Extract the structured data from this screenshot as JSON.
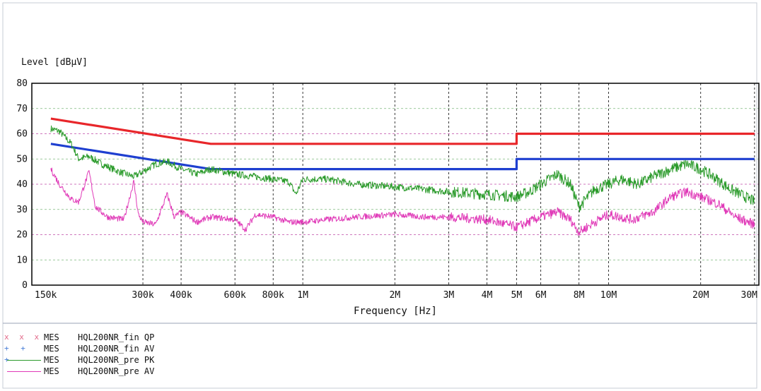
{
  "chart_data": {
    "type": "line",
    "ylabel": "Level [dBµV]",
    "xlabel": "Frequency [Hz]",
    "x_scale": "log",
    "xlim": [
      130000,
      31000000
    ],
    "ylim": [
      0,
      80
    ],
    "yticks": [
      0,
      10,
      20,
      30,
      40,
      50,
      60,
      70,
      80
    ],
    "xticks": [
      {
        "v": 150000,
        "label": "150k"
      },
      {
        "v": 300000,
        "label": "300k"
      },
      {
        "v": 400000,
        "label": "400k"
      },
      {
        "v": 600000,
        "label": "600k"
      },
      {
        "v": 800000,
        "label": "800k"
      },
      {
        "v": 1000000,
        "label": "1M"
      },
      {
        "v": 2000000,
        "label": "2M"
      },
      {
        "v": 3000000,
        "label": "3M"
      },
      {
        "v": 4000000,
        "label": "4M"
      },
      {
        "v": 5000000,
        "label": "5M"
      },
      {
        "v": 6000000,
        "label": "6M"
      },
      {
        "v": 8000000,
        "label": "8M"
      },
      {
        "v": 10000000,
        "label": "10M"
      },
      {
        "v": 20000000,
        "label": "20M"
      },
      {
        "v": 30000000,
        "label": "30M"
      }
    ],
    "grid": true,
    "limits": [
      {
        "color": "#e8262a",
        "points": [
          [
            150000,
            66
          ],
          [
            500000,
            56
          ],
          [
            5000000,
            56
          ],
          [
            5000000,
            60
          ],
          [
            30000000,
            60
          ]
        ]
      },
      {
        "color": "#1e3fd0",
        "points": [
          [
            150000,
            56
          ],
          [
            500000,
            46
          ],
          [
            5000000,
            46
          ],
          [
            5000000,
            50
          ],
          [
            30000000,
            50
          ]
        ]
      }
    ],
    "series": [
      {
        "color": "#2a9a2a",
        "noise": 1.4,
        "points": [
          [
            150000,
            62
          ],
          [
            160000,
            61
          ],
          [
            175000,
            56
          ],
          [
            185000,
            50
          ],
          [
            200000,
            51
          ],
          [
            220000,
            48
          ],
          [
            250000,
            45
          ],
          [
            280000,
            43
          ],
          [
            300000,
            45
          ],
          [
            330000,
            48
          ],
          [
            360000,
            49
          ],
          [
            400000,
            46
          ],
          [
            450000,
            44
          ],
          [
            500000,
            46
          ],
          [
            600000,
            44
          ],
          [
            700000,
            43
          ],
          [
            800000,
            42
          ],
          [
            900000,
            41
          ],
          [
            950000,
            36
          ],
          [
            1000000,
            42
          ],
          [
            1200000,
            42
          ],
          [
            1500000,
            40
          ],
          [
            2000000,
            39
          ],
          [
            2500000,
            38
          ],
          [
            3000000,
            37
          ],
          [
            4000000,
            36
          ],
          [
            5000000,
            35
          ],
          [
            5500000,
            37
          ],
          [
            6000000,
            40
          ],
          [
            6800000,
            44
          ],
          [
            7500000,
            40
          ],
          [
            8000000,
            31
          ],
          [
            9000000,
            38
          ],
          [
            10000000,
            40
          ],
          [
            11000000,
            42
          ],
          [
            12500000,
            40
          ],
          [
            14000000,
            43
          ],
          [
            16000000,
            46
          ],
          [
            18000000,
            48
          ],
          [
            20000000,
            46
          ],
          [
            22000000,
            43
          ],
          [
            25000000,
            38
          ],
          [
            28000000,
            35
          ],
          [
            30000000,
            33
          ]
        ]
      },
      {
        "color": "#e03ab8",
        "noise": 1.2,
        "points": [
          [
            150000,
            46
          ],
          [
            160000,
            40
          ],
          [
            175000,
            34
          ],
          [
            185000,
            33
          ],
          [
            200000,
            45
          ],
          [
            210000,
            31
          ],
          [
            230000,
            27
          ],
          [
            260000,
            26
          ],
          [
            280000,
            41
          ],
          [
            290000,
            28
          ],
          [
            300000,
            25
          ],
          [
            330000,
            24
          ],
          [
            360000,
            36
          ],
          [
            380000,
            27
          ],
          [
            400000,
            29
          ],
          [
            450000,
            25
          ],
          [
            500000,
            27
          ],
          [
            600000,
            26
          ],
          [
            650000,
            22
          ],
          [
            700000,
            28
          ],
          [
            800000,
            27
          ],
          [
            900000,
            25
          ],
          [
            1000000,
            25
          ],
          [
            1200000,
            26
          ],
          [
            1500000,
            27
          ],
          [
            2000000,
            28
          ],
          [
            2500000,
            27
          ],
          [
            3000000,
            27
          ],
          [
            4000000,
            26
          ],
          [
            5000000,
            23
          ],
          [
            6000000,
            27
          ],
          [
            6800000,
            29
          ],
          [
            7500000,
            26
          ],
          [
            8000000,
            21
          ],
          [
            9000000,
            25
          ],
          [
            10000000,
            28
          ],
          [
            12000000,
            26
          ],
          [
            14000000,
            29
          ],
          [
            16000000,
            35
          ],
          [
            18000000,
            37
          ],
          [
            20000000,
            35
          ],
          [
            23000000,
            32
          ],
          [
            26000000,
            27
          ],
          [
            30000000,
            24
          ]
        ]
      }
    ]
  },
  "legend": [
    {
      "marker": "x x x",
      "kind": "x",
      "color": "#e26a8a",
      "mes": "MES",
      "name": "HQL200NR_fin QP"
    },
    {
      "marker": "+ + +",
      "kind": "plus",
      "color": "#4a7fd8",
      "mes": "MES",
      "name": "HQL200NR_fin AV"
    },
    {
      "marker": "",
      "kind": "line",
      "color": "#2a9a2a",
      "mes": "MES",
      "name": "HQL200NR_pre PK"
    },
    {
      "marker": "",
      "kind": "line",
      "color": "#e03ab8",
      "mes": "MES",
      "name": "HQL200NR_pre AV"
    }
  ]
}
